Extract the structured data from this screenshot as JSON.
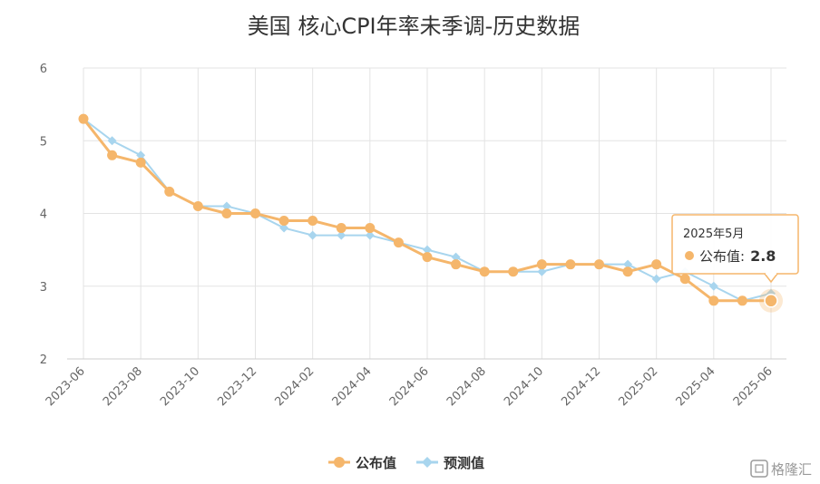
{
  "chart_data": {
    "type": "line",
    "title": "美国 核心CPI年率未季调-历史数据",
    "xlabel": "",
    "ylabel": "",
    "ylim": [
      2,
      6
    ],
    "yticks": [
      2,
      3,
      4,
      5,
      6
    ],
    "grid": true,
    "legend_position": "bottom",
    "categories": [
      "2023-06",
      "2023-07",
      "2023-08",
      "2023-09",
      "2023-10",
      "2023-11",
      "2023-12",
      "2024-01",
      "2024-02",
      "2024-03",
      "2024-04",
      "2024-05",
      "2024-06",
      "2024-07",
      "2024-08",
      "2024-09",
      "2024-10",
      "2024-11",
      "2024-12",
      "2025-01",
      "2025-02",
      "2025-03",
      "2025-04",
      "2025-05",
      "2025-06"
    ],
    "xtick_labels": [
      "2023-06",
      "2023-08",
      "2023-10",
      "2023-12",
      "2024-02",
      "2024-04",
      "2024-06",
      "2024-08",
      "2024-10",
      "2024-12",
      "2025-02",
      "2025-04",
      "2025-06"
    ],
    "series": [
      {
        "name": "公布值",
        "color": "#f5b66b",
        "marker": "circle",
        "values": [
          5.3,
          4.8,
          4.7,
          4.3,
          4.1,
          4.0,
          4.0,
          3.9,
          3.9,
          3.8,
          3.8,
          3.6,
          3.4,
          3.3,
          3.2,
          3.2,
          3.3,
          3.3,
          3.3,
          3.2,
          3.3,
          3.1,
          2.8,
          2.8,
          2.8
        ]
      },
      {
        "name": "预测值",
        "color": "#a8d5ee",
        "marker": "diamond",
        "values": [
          5.3,
          5.0,
          4.8,
          4.3,
          4.1,
          4.1,
          4.0,
          3.8,
          3.7,
          3.7,
          3.7,
          3.6,
          3.5,
          3.4,
          3.2,
          3.2,
          3.2,
          3.3,
          3.3,
          3.3,
          3.1,
          3.2,
          3.0,
          2.8,
          2.9
        ]
      }
    ],
    "tooltip": {
      "title": "2025年5月",
      "series_label": "公布值",
      "separator": ":",
      "value": "2.8"
    }
  },
  "watermark": {
    "text": "格隆汇",
    "icon": "gelonghui-logo-icon"
  }
}
